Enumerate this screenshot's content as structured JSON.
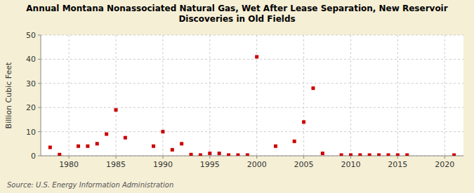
{
  "chart_data": {
    "type": "scatter",
    "title": "Annual Montana Nonassociated Natural Gas, Wet After Lease Separation, New Reservoir\nDiscoveries in Old Fields",
    "y_label": "Billion Cubic Feet",
    "annotations": [
      "Source: U.S. Energy Information Administration"
    ],
    "x": [
      1978,
      1979,
      1981,
      1982,
      1983,
      1984,
      1985,
      1986,
      1989,
      1990,
      1991,
      1992,
      1993,
      1994,
      1995,
      1996,
      1997,
      1998,
      1999,
      2000,
      2002,
      2004,
      2005,
      2006,
      2007,
      2009,
      2010,
      2011,
      2012,
      2013,
      2014,
      2015,
      2016,
      2021
    ],
    "values": [
      3.5,
      0.5,
      4.0,
      4.0,
      5.0,
      9.0,
      19.0,
      7.5,
      4.0,
      10.0,
      2.5,
      5.0,
      0.5,
      0.3,
      1.0,
      1.0,
      0.3,
      0.3,
      0.3,
      41.0,
      4.0,
      6.0,
      14.0,
      28.0,
      1.0,
      0.3,
      0.3,
      0.3,
      0.3,
      0.3,
      0.3,
      0.3,
      0.3,
      0.3
    ],
    "color": "#cc0000",
    "marker": "square",
    "grid": true,
    "xlim": [
      1977,
      2022
    ],
    "ylim": [
      0,
      50
    ],
    "xticks": [
      1980,
      1985,
      1990,
      1995,
      2000,
      2005,
      2010,
      2015,
      2020
    ],
    "yticks": [
      0,
      10,
      20,
      30,
      40,
      50
    ]
  }
}
